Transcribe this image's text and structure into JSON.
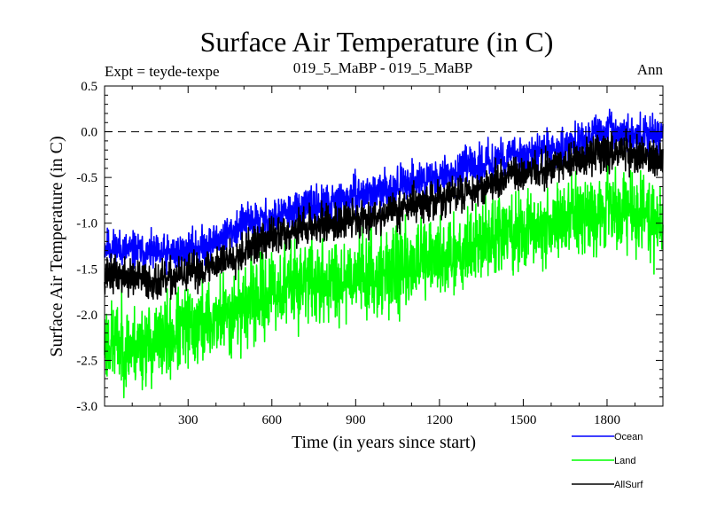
{
  "chart_data": {
    "type": "line",
    "title": "Surface Air Temperature (in C)",
    "subtitle_left": "Expt = teyde-texpe",
    "subtitle_center": "019_5_MaBP - 019_5_MaBP",
    "subtitle_right": "Ann",
    "xlabel": "Time (in years since start)",
    "ylabel": "Surface Air Temperature (in C)",
    "xlim": [
      1,
      2000
    ],
    "ylim": [
      -3.0,
      0.5
    ],
    "xticks": [
      300,
      600,
      900,
      1200,
      1500,
      1800
    ],
    "xtick_labels": [
      "300",
      "600",
      "900",
      "1200",
      "1500",
      "1800"
    ],
    "yticks": [
      -3.0,
      -2.5,
      -2.0,
      -1.5,
      -1.0,
      -0.5,
      0.0,
      0.5
    ],
    "ytick_labels": [
      "-3.0",
      "-2.5",
      "-2.0",
      "-1.5",
      "-1.0",
      "-0.5",
      "0.0",
      "0.5"
    ],
    "reference_line": 0.0,
    "legend_position": "below-right",
    "series": [
      {
        "name": "Ocean",
        "color": "#0000ff",
        "x": [
          1,
          100,
          200,
          300,
          400,
          500,
          600,
          700,
          800,
          900,
          1000,
          1100,
          1200,
          1300,
          1400,
          1500,
          1600,
          1700,
          1800,
          1900,
          2000
        ],
        "values": [
          -1.25,
          -1.3,
          -1.35,
          -1.3,
          -1.2,
          -1.0,
          -0.95,
          -0.85,
          -0.8,
          -0.7,
          -0.65,
          -0.55,
          -0.5,
          -0.4,
          -0.3,
          -0.25,
          -0.2,
          -0.1,
          0.0,
          -0.05,
          -0.05
        ],
        "noise": 0.1
      },
      {
        "name": "Land",
        "color": "#00ff00",
        "x": [
          1,
          100,
          200,
          300,
          400,
          500,
          600,
          700,
          800,
          900,
          1000,
          1100,
          1200,
          1300,
          1400,
          1500,
          1600,
          1700,
          1800,
          1900,
          2000
        ],
        "values": [
          -2.3,
          -2.35,
          -2.3,
          -2.15,
          -2.05,
          -1.9,
          -1.75,
          -1.65,
          -1.65,
          -1.55,
          -1.55,
          -1.45,
          -1.4,
          -1.25,
          -1.15,
          -1.1,
          -1.0,
          -0.9,
          -0.8,
          -0.9,
          -0.95
        ],
        "noise": 0.22
      },
      {
        "name": "AllSurf",
        "color": "#000000",
        "x": [
          1,
          100,
          200,
          300,
          400,
          500,
          600,
          700,
          800,
          900,
          1000,
          1100,
          1200,
          1300,
          1400,
          1500,
          1600,
          1700,
          1800,
          1900,
          2000
        ],
        "values": [
          -1.55,
          -1.6,
          -1.65,
          -1.55,
          -1.45,
          -1.3,
          -1.15,
          -1.05,
          -1.0,
          -0.95,
          -0.9,
          -0.8,
          -0.75,
          -0.65,
          -0.55,
          -0.45,
          -0.4,
          -0.3,
          -0.2,
          -0.25,
          -0.3
        ],
        "noise": 0.1
      }
    ]
  }
}
